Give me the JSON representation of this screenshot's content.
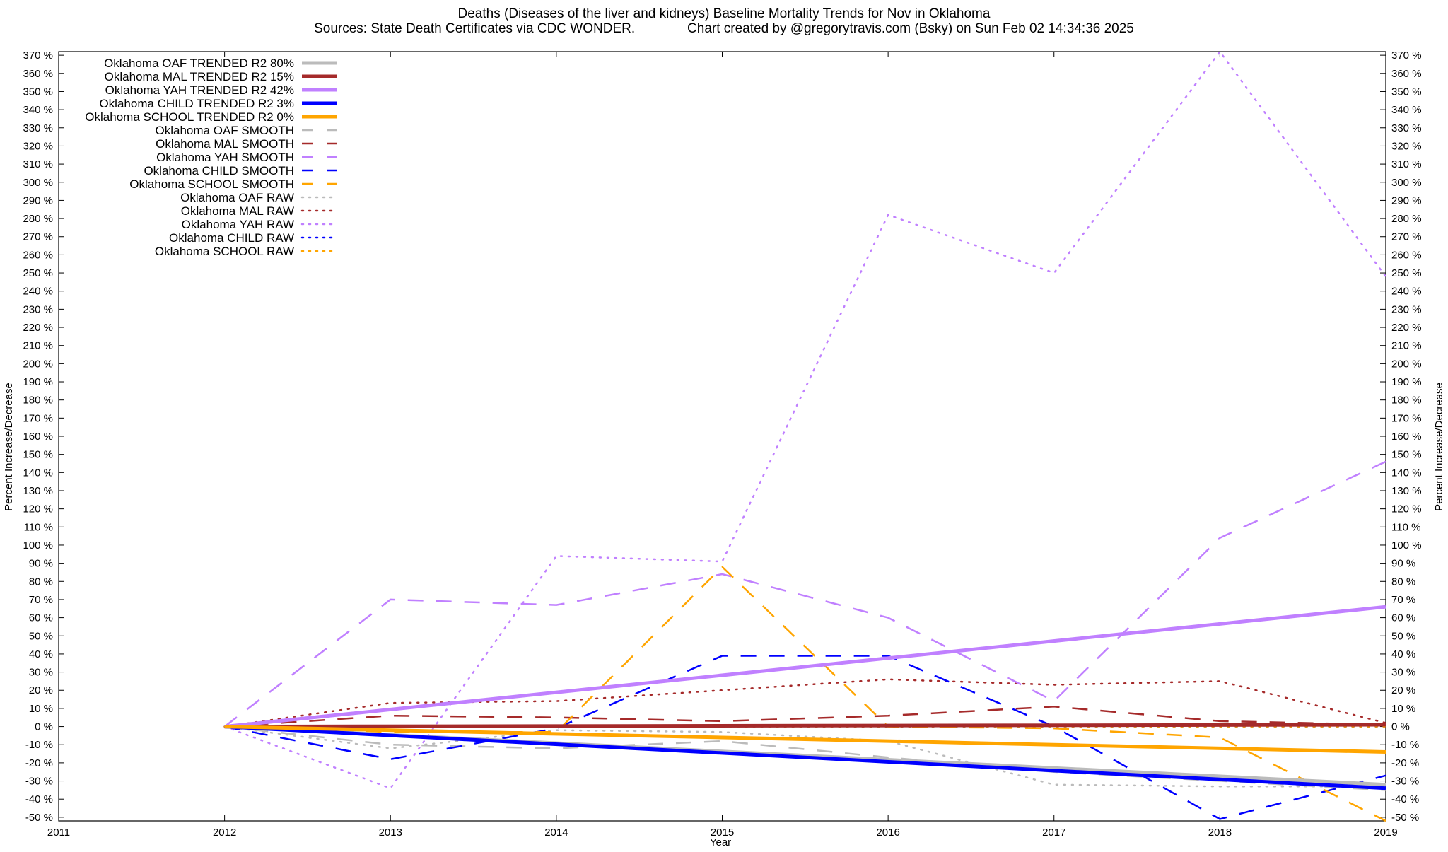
{
  "chart_data": {
    "type": "line",
    "title": "Deaths (Diseases of the liver and kidneys)  Baseline Mortality Trends for Nov in Oklahoma",
    "subtitle": "Sources: State Death Certificates via CDC WONDER.              Chart created by @gregorytravis.com (Bsky) on Sun Feb 02 14:34:36 2025",
    "xlabel": "Year",
    "ylabel": "Percent Increase/Decrease",
    "y2label": "Percent Increase/Decrease",
    "xlim": [
      2011,
      2019
    ],
    "ylim": [
      -52,
      372
    ],
    "x_ticks": [
      "2011",
      "2012",
      "2013",
      "2014",
      "2015",
      "2016",
      "2017",
      "2018",
      "2019"
    ],
    "y_ticks": [
      {
        "value": 370,
        "label": "370 %"
      },
      {
        "value": 360,
        "label": "360 %"
      },
      {
        "value": 350,
        "label": "350 %"
      },
      {
        "value": 340,
        "label": "340 %"
      },
      {
        "value": 330,
        "label": "330 %"
      },
      {
        "value": 320,
        "label": "320 %"
      },
      {
        "value": 310,
        "label": "310 %"
      },
      {
        "value": 300,
        "label": "300 %"
      },
      {
        "value": 290,
        "label": "290 %"
      },
      {
        "value": 280,
        "label": "280 %"
      },
      {
        "value": 270,
        "label": "270 %"
      },
      {
        "value": 260,
        "label": "260 %"
      },
      {
        "value": 250,
        "label": "250 %"
      },
      {
        "value": 240,
        "label": "240 %"
      },
      {
        "value": 230,
        "label": "230 %"
      },
      {
        "value": 220,
        "label": "220 %"
      },
      {
        "value": 210,
        "label": "210 %"
      },
      {
        "value": 200,
        "label": "200 %"
      },
      {
        "value": 190,
        "label": "190 %"
      },
      {
        "value": 180,
        "label": "180 %"
      },
      {
        "value": 170,
        "label": "170 %"
      },
      {
        "value": 160,
        "label": "160 %"
      },
      {
        "value": 150,
        "label": "150 %"
      },
      {
        "value": 140,
        "label": "140 %"
      },
      {
        "value": 130,
        "label": "130 %"
      },
      {
        "value": 120,
        "label": "120 %"
      },
      {
        "value": 110,
        "label": "110 %"
      },
      {
        "value": 100,
        "label": "100 %"
      },
      {
        "value": 90,
        "label": "90 %"
      },
      {
        "value": 80,
        "label": "80 %"
      },
      {
        "value": 70,
        "label": "70 %"
      },
      {
        "value": 60,
        "label": "60 %"
      },
      {
        "value": 50,
        "label": "50 %"
      },
      {
        "value": 40,
        "label": "40 %"
      },
      {
        "value": 30,
        "label": "30 %"
      },
      {
        "value": 20,
        "label": "20 %"
      },
      {
        "value": 10,
        "label": "10 %"
      },
      {
        "value": 0,
        "label": "0 %"
      },
      {
        "value": -10,
        "label": "-10 %"
      },
      {
        "value": -20,
        "label": "-20 %"
      },
      {
        "value": -30,
        "label": "-30 %"
      },
      {
        "value": -40,
        "label": "-40 %"
      },
      {
        "value": -50,
        "label": "-50 %"
      }
    ],
    "grid": false,
    "legend_position": "top-left",
    "series": [
      {
        "name": "Oklahoma OAF TRENDED R2  80%",
        "color": "#bbbbbb",
        "style": "solid",
        "width": 5,
        "x": [
          2012,
          2019
        ],
        "y": [
          0,
          -32
        ]
      },
      {
        "name": "Oklahoma MAL TRENDED R2  15%",
        "color": "#a52a2a",
        "style": "solid",
        "width": 5,
        "x": [
          2012,
          2019
        ],
        "y": [
          0,
          1
        ]
      },
      {
        "name": "Oklahoma YAH TRENDED R2  42%",
        "color": "#c080ff",
        "style": "solid",
        "width": 5,
        "x": [
          2012,
          2019
        ],
        "y": [
          0,
          66
        ]
      },
      {
        "name": "Oklahoma CHILD TRENDED R2   3%",
        "color": "#0000ff",
        "style": "solid",
        "width": 5,
        "x": [
          2012,
          2019
        ],
        "y": [
          0,
          -34
        ]
      },
      {
        "name": "Oklahoma SCHOOL TRENDED R2   0%",
        "color": "#ffa500",
        "style": "solid",
        "width": 5,
        "x": [
          2012,
          2019
        ],
        "y": [
          0,
          -14
        ]
      },
      {
        "name": "Oklahoma OAF SMOOTH",
        "color": "#bbbbbb",
        "style": "dashed",
        "width": 2.5,
        "x": [
          2012,
          2013,
          2014,
          2015,
          2016,
          2017,
          2018,
          2019
        ],
        "y": [
          0,
          -10,
          -12,
          -8,
          -17,
          -25,
          -30,
          -35
        ]
      },
      {
        "name": "Oklahoma MAL SMOOTH",
        "color": "#a52a2a",
        "style": "dashed",
        "width": 2.5,
        "x": [
          2012,
          2013,
          2014,
          2015,
          2016,
          2017,
          2018,
          2019
        ],
        "y": [
          0,
          6,
          5,
          3,
          6,
          11,
          3,
          1
        ]
      },
      {
        "name": "Oklahoma YAH SMOOTH",
        "color": "#c080ff",
        "style": "dashed",
        "width": 2.5,
        "x": [
          2012,
          2013,
          2014,
          2015,
          2016,
          2017,
          2018,
          2019
        ],
        "y": [
          0,
          70,
          67,
          84,
          60,
          14,
          104,
          146
        ]
      },
      {
        "name": "Oklahoma CHILD SMOOTH",
        "color": "#0000ff",
        "style": "dashed",
        "width": 2.5,
        "x": [
          2012,
          2013,
          2014,
          2015,
          2016,
          2017,
          2018,
          2019
        ],
        "y": [
          0,
          -18,
          -1,
          39,
          39,
          0,
          -51,
          -27
        ]
      },
      {
        "name": "Oklahoma SCHOOL SMOOTH",
        "color": "#ffa500",
        "style": "dashed",
        "width": 2.5,
        "x": [
          2012,
          2013,
          2014,
          2015,
          2016,
          2017,
          2018,
          2019
        ],
        "y": [
          0,
          -3,
          -3,
          88,
          0,
          -1,
          -6,
          -53
        ]
      },
      {
        "name": "Oklahoma OAF RAW",
        "color": "#bbbbbb",
        "style": "dotted",
        "width": 2.5,
        "x": [
          2012,
          2013,
          2014,
          2015,
          2016,
          2017,
          2018,
          2019
        ],
        "y": [
          0,
          -12,
          -2,
          -3,
          -8,
          -32,
          -33,
          -33
        ]
      },
      {
        "name": "Oklahoma MAL RAW",
        "color": "#a52a2a",
        "style": "dotted",
        "width": 2.5,
        "x": [
          2012,
          2013,
          2014,
          2015,
          2016,
          2017,
          2018,
          2019
        ],
        "y": [
          0,
          13,
          14,
          20,
          26,
          23,
          25,
          2
        ]
      },
      {
        "name": "Oklahoma YAH RAW",
        "color": "#c080ff",
        "style": "dotted",
        "width": 2.5,
        "x": [
          2012,
          2013,
          2014,
          2015,
          2016,
          2017,
          2018,
          2019
        ],
        "y": [
          0,
          -34,
          94,
          91,
          282,
          250,
          372,
          248
        ]
      },
      {
        "name": "Oklahoma CHILD RAW",
        "color": "#0000ff",
        "style": "dotted",
        "width": 2.5,
        "x": [
          2012,
          2013,
          2014,
          2015,
          2016,
          2017,
          2018,
          2019
        ],
        "y": [
          0,
          0,
          0,
          0,
          0,
          0,
          0,
          0
        ]
      },
      {
        "name": "Oklahoma SCHOOL RAW",
        "color": "#ffa500",
        "style": "dotted",
        "width": 2.5,
        "x": [
          2012,
          2013,
          2014,
          2015,
          2016,
          2017,
          2018,
          2019
        ],
        "y": [
          0,
          0,
          0,
          0,
          0,
          0,
          0,
          0
        ]
      }
    ]
  }
}
